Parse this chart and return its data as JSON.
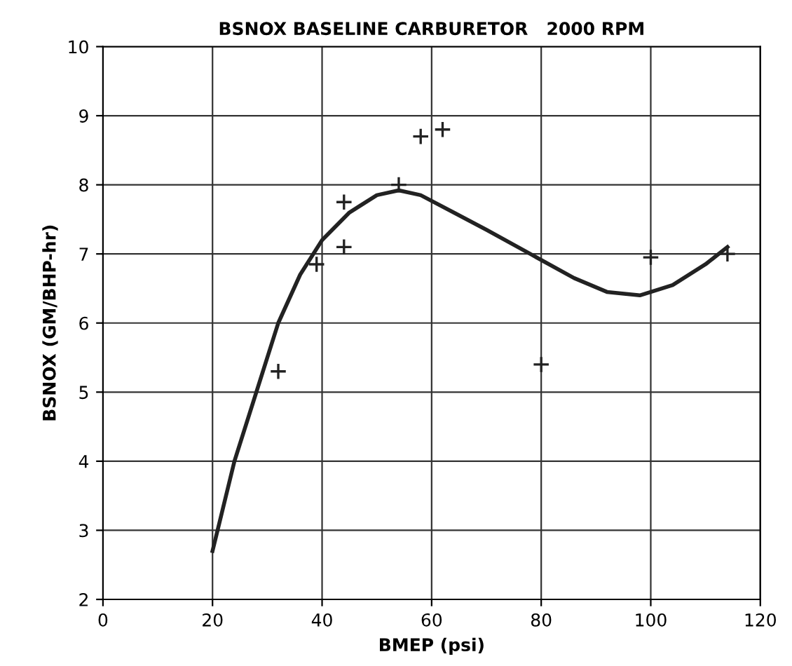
{
  "chart_data": {
    "type": "scatter",
    "title": "BSNOX BASELINE CARBURETOR   2000 RPM",
    "xlabel": "BMEP (psi)",
    "ylabel": "BSNOX (GM/BHP-hr)",
    "xlim": [
      0,
      120
    ],
    "xticks": [
      0,
      20,
      40,
      60,
      80,
      100,
      120
    ],
    "ylim": [
      2,
      10
    ],
    "yticks": [
      2,
      3,
      4,
      5,
      6,
      7,
      8,
      9,
      10
    ],
    "grid": true,
    "series": [
      {
        "marker": "cross",
        "color": "#222222",
        "x": [
          32,
          39,
          44,
          44,
          54,
          58,
          62,
          80,
          100,
          114
        ],
        "values": [
          5.3,
          6.85,
          7.75,
          7.1,
          8.0,
          8.7,
          8.8,
          5.4,
          6.95,
          7.0
        ]
      },
      {
        "type": "line",
        "color": "#222222",
        "line_style": "solid",
        "x": [
          20,
          24,
          28,
          32,
          36,
          40,
          45,
          50,
          54,
          58,
          64,
          70,
          78,
          86,
          92,
          98,
          104,
          110,
          114
        ],
        "values": [
          2.7,
          4.0,
          5.0,
          6.0,
          6.7,
          7.2,
          7.6,
          7.85,
          7.92,
          7.85,
          7.6,
          7.35,
          7.0,
          6.65,
          6.45,
          6.4,
          6.55,
          6.85,
          7.1
        ]
      }
    ]
  }
}
